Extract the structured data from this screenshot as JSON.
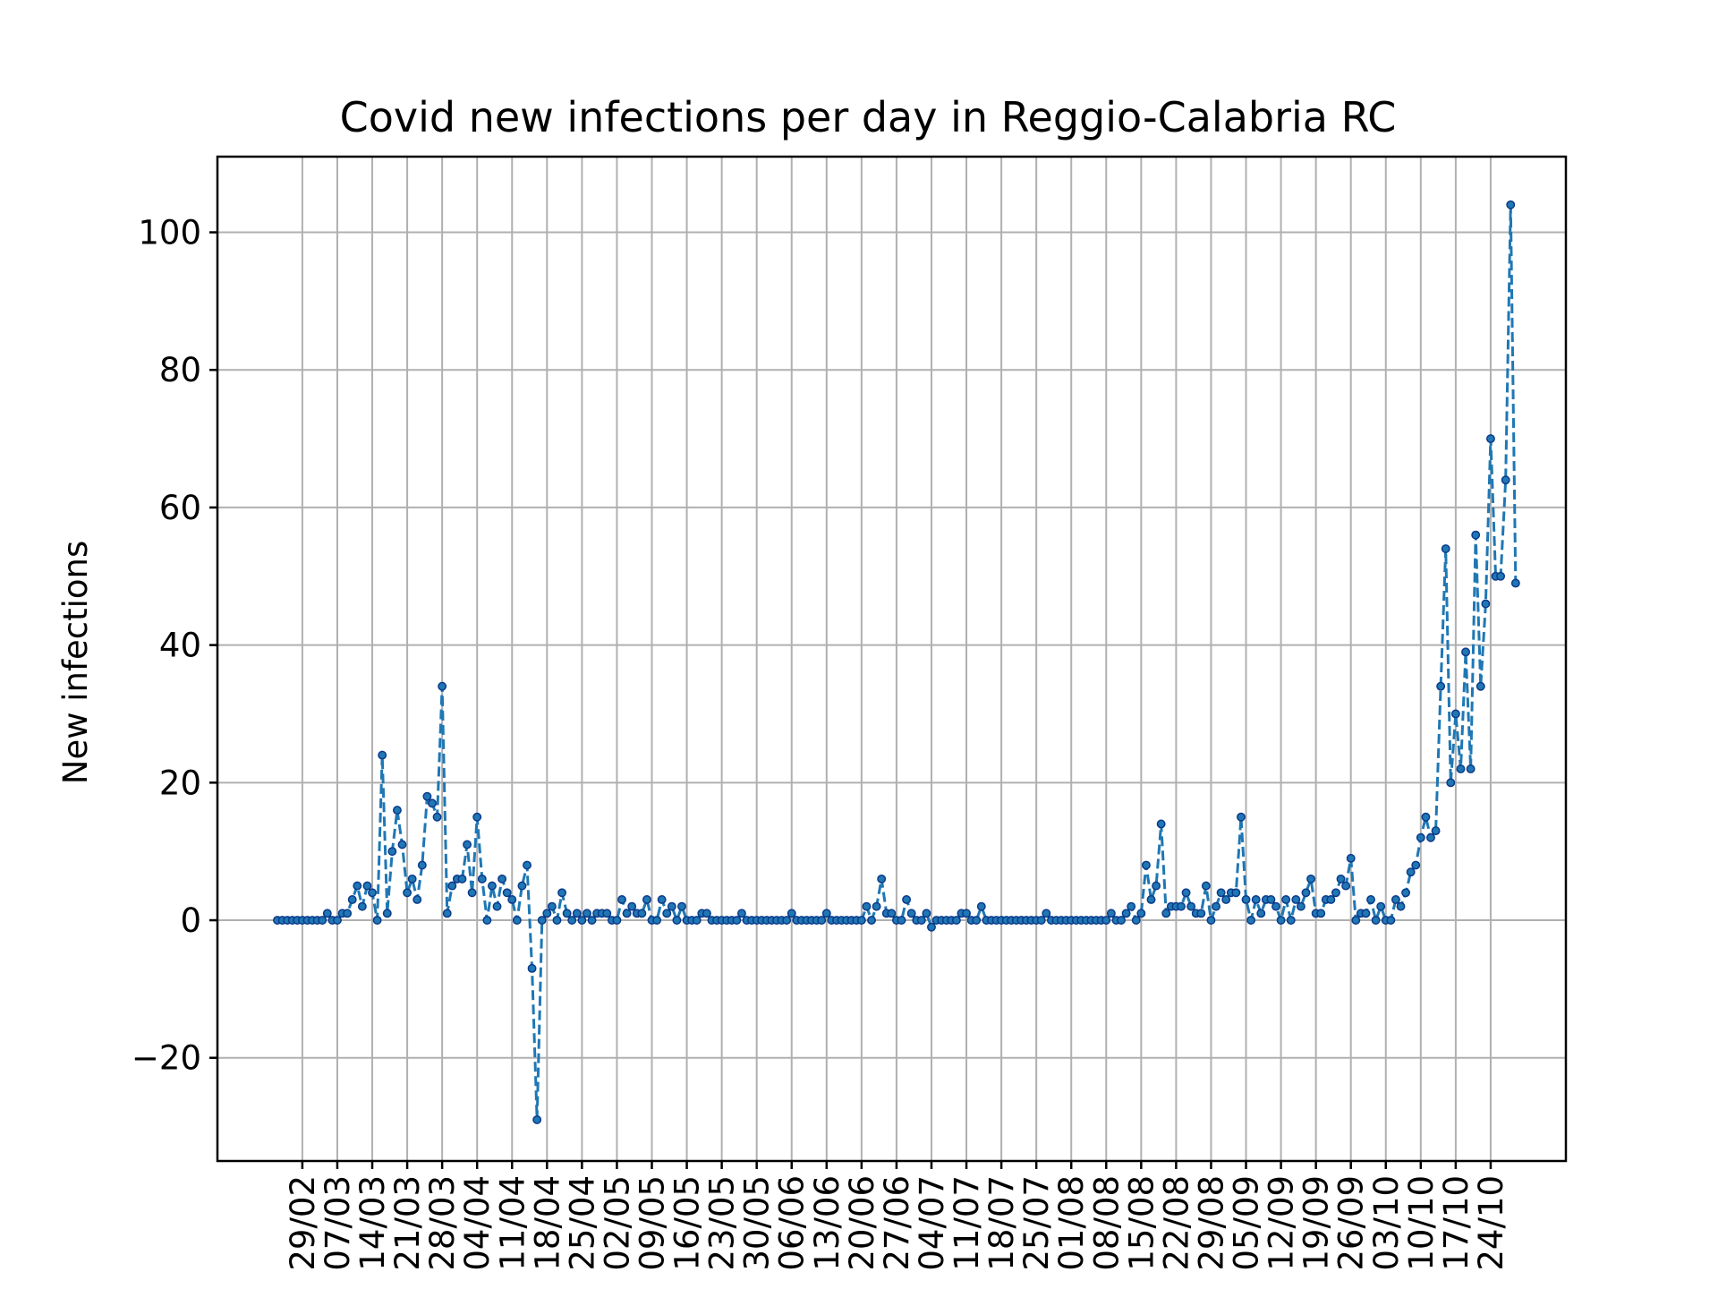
{
  "chart_data": {
    "type": "line",
    "title": "Covid new infections per day in Reggio-Calabria RC",
    "xlabel": "",
    "ylabel": "New infections",
    "start_date": "2020-02-24",
    "x_tick_labels": [
      "29/02",
      "07/03",
      "14/03",
      "21/03",
      "28/03",
      "04/04",
      "11/04",
      "18/04",
      "25/04",
      "02/05",
      "09/05",
      "16/05",
      "23/05",
      "30/05",
      "06/06",
      "13/06",
      "20/06",
      "27/06",
      "04/07",
      "11/07",
      "18/07",
      "25/07",
      "01/08",
      "08/08",
      "15/08",
      "22/08",
      "29/08",
      "05/09",
      "12/09",
      "19/09",
      "26/09",
      "03/10",
      "10/10",
      "17/10",
      "24/10"
    ],
    "y_ticks": [
      -20,
      0,
      20,
      40,
      60,
      80,
      100
    ],
    "ylim": [
      -35,
      111
    ],
    "grid": true,
    "series": [
      {
        "name": "",
        "color": "#1f77b4",
        "values": [
          0,
          0,
          0,
          0,
          0,
          0,
          0,
          0,
          0,
          0,
          1,
          0,
          0,
          1,
          1,
          3,
          5,
          2,
          5,
          4,
          0,
          24,
          1,
          10,
          16,
          11,
          4,
          6,
          3,
          8,
          18,
          17,
          15,
          34,
          1,
          5,
          6,
          6,
          11,
          4,
          15,
          6,
          0,
          5,
          2,
          6,
          4,
          3,
          0,
          5,
          8,
          -7,
          -29,
          0,
          1,
          2,
          0,
          4,
          1,
          0,
          1,
          0,
          1,
          0,
          1,
          1,
          1,
          0,
          0,
          3,
          1,
          2,
          1,
          1,
          3,
          0,
          0,
          3,
          1,
          2,
          0,
          2,
          0,
          0,
          0,
          1,
          1,
          0,
          0,
          0,
          0,
          0,
          0,
          1,
          0,
          0,
          0,
          0,
          0,
          0,
          0,
          0,
          0,
          1,
          0,
          0,
          0,
          0,
          0,
          0,
          1,
          0,
          0,
          0,
          0,
          0,
          0,
          0,
          2,
          0,
          2,
          6,
          1,
          1,
          0,
          0,
          3,
          1,
          0,
          0,
          1,
          -1,
          0,
          0,
          0,
          0,
          0,
          1,
          1,
          0,
          0,
          2,
          0,
          0,
          0,
          0,
          0,
          0,
          0,
          0,
          0,
          0,
          0,
          0,
          1,
          0,
          0,
          0,
          0,
          0,
          0,
          0,
          0,
          0,
          0,
          0,
          0,
          1,
          0,
          0,
          1,
          2,
          0,
          1,
          8,
          3,
          5,
          14,
          1,
          2,
          2,
          2,
          4,
          2,
          1,
          1,
          5,
          0,
          2,
          4,
          3,
          4,
          4,
          15,
          3,
          0,
          3,
          1,
          3,
          3,
          2,
          0,
          3,
          0,
          3,
          2,
          4,
          6,
          1,
          1,
          3,
          3,
          4,
          6,
          5,
          9,
          0,
          1,
          1,
          3,
          0,
          2,
          0,
          0,
          3,
          2,
          4,
          7,
          8,
          12,
          15,
          12,
          13,
          34,
          54,
          20,
          30,
          22,
          39,
          22,
          56,
          34,
          46,
          70,
          50,
          50,
          64,
          104,
          49
        ]
      }
    ]
  }
}
